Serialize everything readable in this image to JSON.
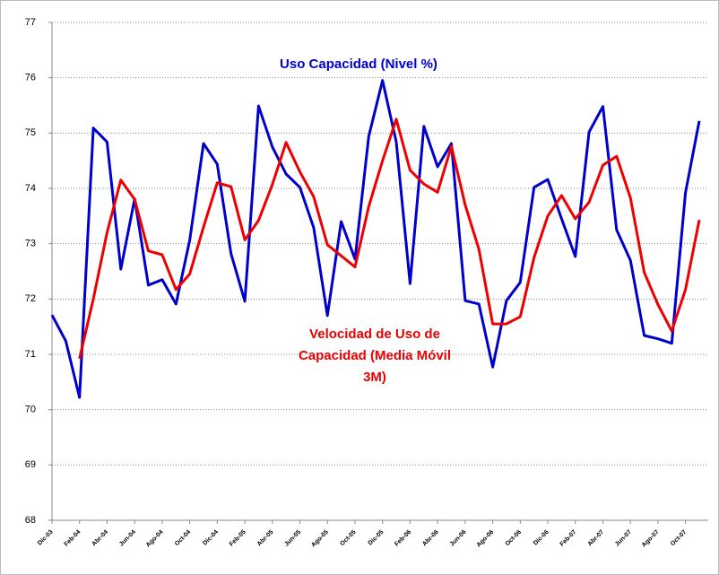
{
  "chart_data": {
    "type": "line",
    "categories": [
      "Dic-03",
      null,
      "Feb-04",
      null,
      "Abr-04",
      null,
      "Jun-04",
      null,
      "Ago-04",
      null,
      "Oct-04",
      null,
      "Dic-04",
      null,
      "Feb-05",
      null,
      "Abr-05",
      null,
      "Jun-05",
      null,
      "Ago-05",
      null,
      "Oct-05",
      null,
      "Dic-05",
      null,
      "Feb-06",
      null,
      "Abr-06",
      null,
      "Jun-06",
      null,
      "Ago-06",
      null,
      "Oct-06",
      null,
      "Dic-06",
      null,
      "Feb-07",
      null,
      "Abr-07",
      null,
      "Jun-07",
      null,
      "Ago-07",
      null,
      "Oct-07",
      null
    ],
    "series": [
      {
        "name": "Uso Capacidad (Nivel %)",
        "color": "#0000cc",
        "values": [
          71.71,
          71.24,
          70.22,
          75.09,
          74.84,
          72.54,
          73.81,
          72.25,
          72.35,
          71.91,
          73.06,
          74.81,
          74.44,
          72.82,
          71.96,
          75.49,
          74.75,
          74.26,
          74.02,
          73.29,
          71.7,
          73.4,
          72.72,
          74.94,
          75.95,
          74.84,
          72.28,
          75.12,
          74.39,
          74.81,
          71.97,
          71.91,
          70.77,
          71.97,
          72.3,
          74.02,
          74.16,
          73.45,
          72.77,
          75.02,
          75.48,
          73.25,
          72.7,
          71.34,
          71.28,
          71.2,
          73.92,
          75.22
        ]
      },
      {
        "name": "Velocidad de Uso de Capacidad (Media Móvil 3M)",
        "color": "#ee0000",
        "values": [
          null,
          null,
          70.92,
          72.0,
          73.2,
          74.15,
          73.8,
          72.87,
          72.8,
          72.17,
          72.45,
          73.3,
          74.1,
          74.03,
          73.07,
          73.42,
          74.07,
          74.83,
          74.3,
          73.85,
          72.98,
          72.78,
          72.58,
          73.67,
          74.5,
          75.25,
          74.33,
          74.08,
          73.93,
          74.76,
          73.7,
          72.9,
          71.55,
          71.55,
          71.68,
          72.75,
          73.5,
          73.87,
          73.45,
          73.75,
          74.42,
          74.58,
          73.83,
          72.48,
          71.9,
          71.42,
          72.17,
          73.43
        ]
      }
    ],
    "annotations": [
      {
        "lines": [
          "Uso Capacidad (Nivel %)"
        ],
        "color": "#0000cc"
      },
      {
        "lines": [
          "Velocidad de Uso de",
          "Capacidad (Media Móvil",
          "3M)"
        ],
        "color": "#ee0000"
      }
    ],
    "ylim": [
      68,
      77
    ],
    "yticks": [
      68,
      69,
      70,
      71,
      72,
      73,
      74,
      75,
      76,
      77
    ],
    "grid": true
  }
}
